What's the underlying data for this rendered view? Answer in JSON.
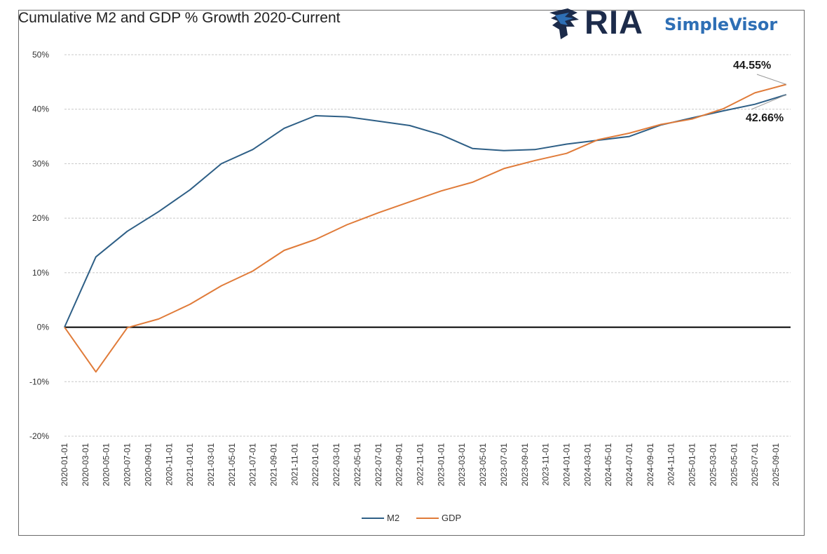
{
  "header": {
    "title": "Cumulative M2 and GDP % Growth 2020-Current"
  },
  "logo": {
    "brand": "RIA",
    "product": "SimpleVisor",
    "icon": "eagle-icon",
    "brand_color": "#1c2b4a",
    "product_color": "#2e6fb5"
  },
  "chart_data": {
    "type": "line",
    "title": "Cumulative M2 and GDP % Growth 2020-Current",
    "xlabel": "",
    "ylabel": "",
    "ylim": [
      -20,
      50
    ],
    "yticks": [
      -20,
      -10,
      0,
      10,
      20,
      30,
      40,
      50
    ],
    "ytick_labels": [
      "-20%",
      "-10%",
      "0%",
      "10%",
      "20%",
      "30%",
      "40%",
      "50%"
    ],
    "grid": true,
    "legend_position": "bottom",
    "x": [
      "2020-01-01",
      "2020-03-01",
      "2020-05-01",
      "2020-07-01",
      "2020-09-01",
      "2020-11-01",
      "2021-01-01",
      "2021-03-01",
      "2021-05-01",
      "2021-07-01",
      "2021-09-01",
      "2021-11-01",
      "2022-01-01",
      "2022-03-01",
      "2022-05-01",
      "2022-07-01",
      "2022-09-01",
      "2022-11-01",
      "2023-01-01",
      "2023-03-01",
      "2023-05-01",
      "2023-07-01",
      "2023-09-01",
      "2023-11-01",
      "2024-01-01",
      "2024-03-01",
      "2024-05-01",
      "2024-07-01",
      "2024-09-01",
      "2024-11-01",
      "2025-01-01",
      "2025-03-01",
      "2025-05-01",
      "2025-07-01",
      "2025-09-01"
    ],
    "series": [
      {
        "name": "M2",
        "color": "#2e5f86",
        "points": [
          [
            "2020-01-01",
            0
          ],
          [
            "2020-04-01",
            12.9
          ],
          [
            "2020-07-01",
            17.6
          ],
          [
            "2020-10-01",
            21.2
          ],
          [
            "2021-01-01",
            25.2
          ],
          [
            "2021-04-01",
            30.0
          ],
          [
            "2021-07-01",
            32.6
          ],
          [
            "2021-10-01",
            36.5
          ],
          [
            "2022-01-01",
            38.8
          ],
          [
            "2022-04-01",
            38.6
          ],
          [
            "2022-07-01",
            37.8
          ],
          [
            "2022-10-01",
            37.0
          ],
          [
            "2023-01-01",
            35.3
          ],
          [
            "2023-04-01",
            32.8
          ],
          [
            "2023-07-01",
            32.4
          ],
          [
            "2023-10-01",
            32.6
          ],
          [
            "2024-01-01",
            33.6
          ],
          [
            "2024-04-01",
            34.3
          ],
          [
            "2024-07-01",
            35.0
          ],
          [
            "2024-10-01",
            37.1
          ],
          [
            "2025-01-01",
            38.4
          ],
          [
            "2025-04-01",
            39.7
          ],
          [
            "2025-07-01",
            40.9
          ],
          [
            "2025-10-01",
            42.66
          ]
        ]
      },
      {
        "name": "GDP",
        "color": "#e07b39",
        "points": [
          [
            "2020-01-01",
            0
          ],
          [
            "2020-04-01",
            -8.2
          ],
          [
            "2020-07-01",
            -0.1
          ],
          [
            "2020-10-01",
            1.5
          ],
          [
            "2021-01-01",
            4.2
          ],
          [
            "2021-04-01",
            7.6
          ],
          [
            "2021-07-01",
            10.3
          ],
          [
            "2021-10-01",
            14.1
          ],
          [
            "2022-01-01",
            16.1
          ],
          [
            "2022-04-01",
            18.8
          ],
          [
            "2022-07-01",
            21.0
          ],
          [
            "2022-10-01",
            23.0
          ],
          [
            "2023-01-01",
            25.0
          ],
          [
            "2023-04-01",
            26.6
          ],
          [
            "2023-07-01",
            29.1
          ],
          [
            "2023-10-01",
            30.6
          ],
          [
            "2024-01-01",
            31.9
          ],
          [
            "2024-04-01",
            34.4
          ],
          [
            "2024-07-01",
            35.6
          ],
          [
            "2024-10-01",
            37.2
          ],
          [
            "2025-01-01",
            38.2
          ],
          [
            "2025-04-01",
            40.1
          ],
          [
            "2025-07-01",
            43.0
          ],
          [
            "2025-10-01",
            44.55
          ]
        ]
      }
    ],
    "annotations": [
      {
        "text": "44.55%",
        "series": "GDP",
        "x": "2025-10-01",
        "y": 44.55
      },
      {
        "text": "42.66%",
        "series": "M2",
        "x": "2025-10-01",
        "y": 42.66
      }
    ],
    "zero_line_color": "#000000",
    "grid_color": "#c8c8c8"
  }
}
